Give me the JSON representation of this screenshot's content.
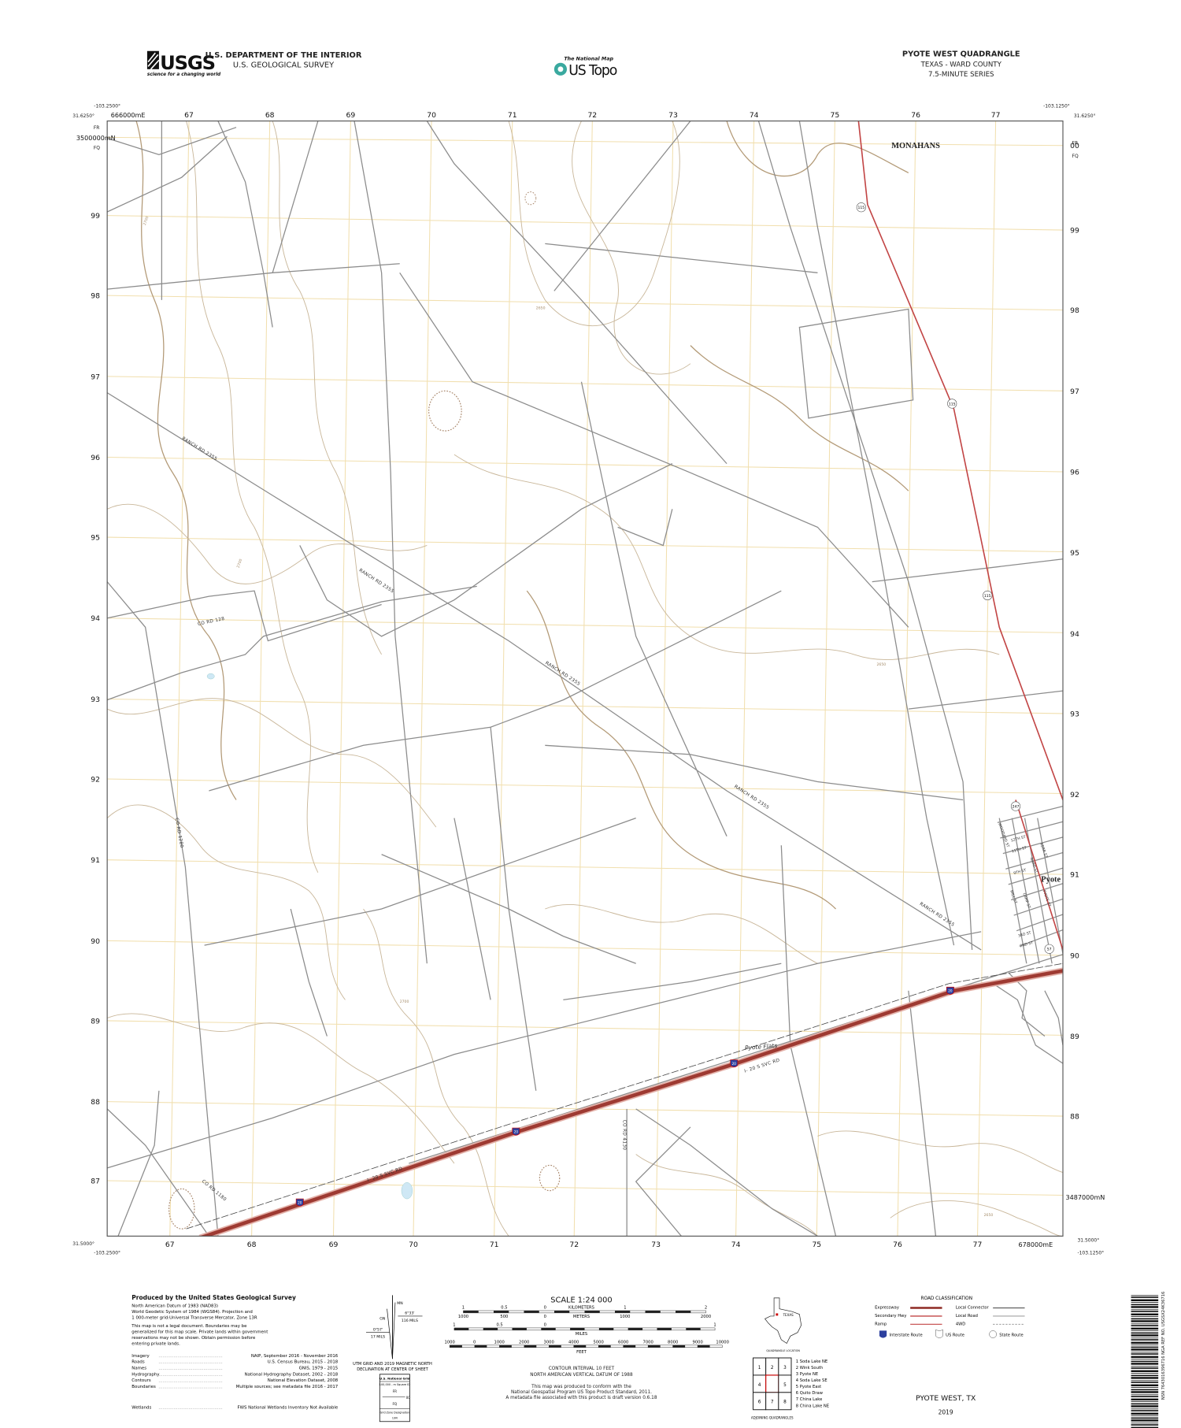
{
  "header": {
    "agency_line1": "U.S. DEPARTMENT OF THE INTERIOR",
    "agency_line2": "U.S. GEOLOGICAL SURVEY",
    "usgs_logo_text": "USGS",
    "usgs_tagline": "science for a changing world",
    "national_map_label": "The National Map",
    "us_topo_label": "US Topo",
    "quad_title": "PYOTE WEST QUADRANGLE",
    "quad_state_county": "TEXAS - WARD COUNTY",
    "quad_series": "7.5-MINUTE SERIES"
  },
  "frame": {
    "corner_top_left_lon": "-103.2500°",
    "corner_top_left_lat": "31.6250°",
    "corner_top_right_lon": "-103.1250°",
    "corner_top_right_lat": "31.6250°",
    "corner_bottom_left_lon": "-103.2500°",
    "corner_bottom_left_lat": "31.5000°",
    "corner_bottom_right_lon": "-103.1250°",
    "corner_bottom_right_lat": "31.5000°",
    "easting_origin_top": "666000mE",
    "easting_origin_bottom": "678000mE",
    "northing_origin_left": "3500000mN",
    "northing_origin_right": "3487000mN",
    "usng_top_left_upper": "FR",
    "usng_top_left_lower": "FQ",
    "usng_top_right_upper": "FR",
    "usng_top_right_lower": "FQ",
    "easting_top": [
      "67",
      "68",
      "69",
      "70",
      "71",
      "72",
      "73",
      "74",
      "75",
      "76",
      "77"
    ],
    "easting_bottom": [
      "67",
      "68",
      "69",
      "70",
      "71",
      "72",
      "73",
      "74",
      "75",
      "76",
      "77"
    ],
    "northing_left": [
      "99",
      "98",
      "97",
      "96",
      "95",
      "94",
      "93",
      "92",
      "91",
      "90",
      "89",
      "88",
      "87"
    ],
    "northing_right": [
      "00",
      "99",
      "98",
      "97",
      "96",
      "95",
      "94",
      "93",
      "92",
      "91",
      "90",
      "89",
      "88"
    ]
  },
  "map": {
    "places": {
      "monahans": "MONAHANS",
      "pyote": "Pyote",
      "pyote_flats": "Pyote Flats"
    },
    "road_labels": {
      "ranch_rd": "RANCH RD 2355",
      "co_rd_128": "CO RD 128",
      "co_rd_1280": "CO RD 1280",
      "co_rd_1180": "CO RD 1180",
      "co_rd_4130": "CO RD 4130",
      "i20_svc": "I- 20 S SVC RD",
      "streets": [
        "12TH ST",
        "11TH ST",
        "9TH ST",
        "3RD ST",
        "2ND ST",
        "WOODARD ST",
        "NARD ST",
        "KERR ST",
        "CAMP ST",
        "MILL ST",
        "PYOTE ST"
      ]
    },
    "shields": {
      "state_115": "115",
      "state_247": "247",
      "interstate_20": "20",
      "route_57": "57"
    },
    "contour_labels": [
      "2700",
      "2650",
      "2650",
      "2700",
      "2650",
      "2700"
    ],
    "colors": {
      "interstate": "#9e3a32",
      "highway": "#c24545",
      "local_road": "#8c8c8c",
      "contour": "#c9b79a",
      "grid": "#f1dfae",
      "water": "#cfe8f5"
    }
  },
  "footer": {
    "credits": {
      "title": "Produced by the United States Geological Survey",
      "datum_lines": [
        "North American Datum of 1983 (NAD83)",
        "World Geodetic System of 1984 (WGS84).  Projection and",
        "1 000-meter grid:Universal Transverse Mercator, Zone 13R"
      ],
      "disclaimer_lines": [
        "This map is not a legal document. Boundaries may be",
        "generalized for this map scale. Private lands within government",
        "reservations may not be shown. Obtain permission before",
        "entering private lands."
      ],
      "sources": [
        {
          "label": "Imagery",
          "value": "NAIP, September 2016 - November 2016"
        },
        {
          "label": "Roads",
          "value": "U.S. Census Bureau, 2015 - 2018"
        },
        {
          "label": "Names",
          "value": "GNIS, 1979 - 2015"
        },
        {
          "label": "Hydrography",
          "value": "National Hydrography Dataset, 2002 - 2018"
        },
        {
          "label": "Contours",
          "value": "National Elevation Dataset, 2008"
        },
        {
          "label": "Boundaries",
          "value": "Multiple sources; see metadata file 2016 - 2017"
        },
        {
          "label": "Wetlands",
          "value": "FWS National Wetlands Inventory Not Available"
        }
      ]
    },
    "declination": {
      "mn_label": "MN",
      "gn_label": "GN",
      "left_angle": "0°57'",
      "left_mils": "17 MILS",
      "right_angle": "6°33'",
      "right_mils": "116 MILS",
      "caption_line1": "UTM GRID AND 2019 MAGNETIC NORTH",
      "caption_line2": "DECLINATION AT CENTER OF SHEET"
    },
    "usng_box": {
      "title": "U.S. National Grid",
      "subtitle": "100,000 - m Square ID",
      "upper": "FR",
      "lower": "FQ",
      "line_value": "00",
      "gzd_label": "Grid Zone Designation",
      "gzd_value": "13R"
    },
    "scale": {
      "title": "SCALE 1:24 000",
      "km_ticks": [
        "1",
        "0.5",
        "0",
        "1",
        "2"
      ],
      "km_unit": "KILOMETERS",
      "m_ticks": [
        "1000",
        "500",
        "0",
        "1000",
        "2000"
      ],
      "m_unit": "METERS",
      "mi_ticks": [
        "1",
        "0.5",
        "0",
        "1"
      ],
      "mi_unit": "MILES",
      "ft_ticks": [
        "1000",
        "0",
        "1000",
        "2000",
        "3000",
        "4000",
        "5000",
        "6000",
        "7000",
        "8000",
        "9000",
        "10000"
      ],
      "ft_unit": "FEET",
      "contour_interval": "CONTOUR INTERVAL 10 FEET",
      "vertical_datum": "NORTH AMERICAN VERTICAL DATUM OF 1988",
      "standard_lines": [
        "This map was produced to conform with the",
        "National Geospatial Program US Topo Product Standard, 2011.",
        "A metadata file associated with this product is draft version 0.6.18"
      ]
    },
    "location": {
      "state_label": "TEXAS",
      "caption": "QUADRANGLE LOCATION"
    },
    "adjoining": {
      "cells": [
        "1",
        "2",
        "3",
        "4",
        "",
        "5",
        "6",
        "7",
        "8"
      ],
      "names": [
        "1 Soda Lake NE",
        "2 Wink South",
        "3 Pyote NE",
        "4 Soda Lake SE",
        "5 Pyote East",
        "6 Quito Draw",
        "7 China Lake",
        "8 China Lake NE"
      ],
      "caption": "ADJOINING QUADRANGLES"
    },
    "road_classification": {
      "title": "ROAD CLASSIFICATION",
      "items": [
        "Expressway",
        "Secondary Hwy",
        "Ramp",
        "Local Connector",
        "Local Road",
        "4WD"
      ],
      "shields": [
        "Interstate Route",
        "US Route",
        "State Route"
      ]
    },
    "sheet_name": "PYOTE WEST, TX",
    "year": "2019",
    "barcode_text": "NSN 7643016396716  NGA REF NO. USGSX24K36716"
  }
}
